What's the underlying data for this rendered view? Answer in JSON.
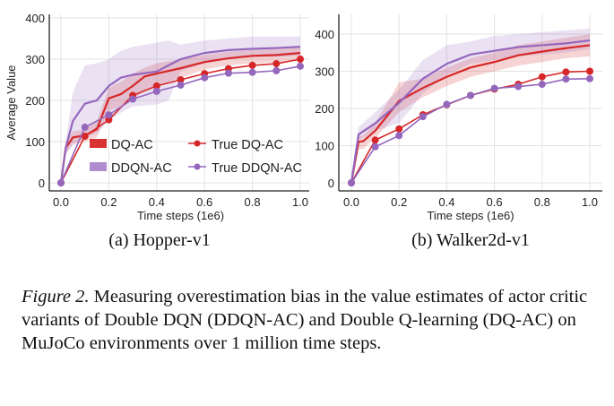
{
  "chart_data": [
    {
      "type": "line",
      "subtitle": "(a) Hopper-v1",
      "xlabel": "Time steps (1e6)",
      "ylabel": "Average Value",
      "xlim": [
        -0.05,
        1.03
      ],
      "ylim": [
        -60,
        410
      ],
      "xticks": [
        "0.0",
        "0.2",
        "0.4",
        "0.6",
        "0.8",
        "1.0"
      ],
      "yticks": [
        "0",
        "100",
        "200",
        "300",
        "400"
      ],
      "grid": true,
      "legend": "bottom-right",
      "series": [
        {
          "name": "DQ-AC",
          "style": "mean+band",
          "color": "#d62728",
          "x": [
            0,
            0.02,
            0.05,
            0.1,
            0.15,
            0.2,
            0.25,
            0.3,
            0.35,
            0.4,
            0.5,
            0.6,
            0.7,
            0.8,
            0.9,
            1.0
          ],
          "y": [
            0,
            85,
            110,
            115,
            130,
            205,
            215,
            235,
            258,
            265,
            278,
            293,
            302,
            308,
            310,
            315
          ],
          "lower": [
            0,
            70,
            95,
            100,
            110,
            175,
            185,
            200,
            225,
            235,
            255,
            275,
            285,
            290,
            292,
            298
          ],
          "upper": [
            0,
            100,
            125,
            130,
            150,
            230,
            245,
            265,
            280,
            290,
            300,
            310,
            318,
            322,
            325,
            330
          ]
        },
        {
          "name": "DDQN-AC",
          "style": "mean+band",
          "color": "#9467bd",
          "x": [
            0,
            0.02,
            0.05,
            0.1,
            0.15,
            0.2,
            0.25,
            0.3,
            0.4,
            0.45,
            0.5,
            0.6,
            0.7,
            0.8,
            0.9,
            1.0
          ],
          "y": [
            0,
            85,
            150,
            192,
            200,
            235,
            255,
            262,
            270,
            285,
            300,
            315,
            322,
            325,
            327,
            330
          ],
          "lower": [
            0,
            70,
            90,
            110,
            120,
            150,
            170,
            185,
            190,
            200,
            270,
            290,
            300,
            305,
            305,
            308
          ],
          "upper": [
            0,
            100,
            220,
            285,
            290,
            300,
            320,
            330,
            340,
            345,
            335,
            345,
            350,
            355,
            355,
            355
          ]
        },
        {
          "name": "True DQ-AC",
          "style": "line+markers",
          "color": "#d62728",
          "x": [
            0,
            0.1,
            0.2,
            0.3,
            0.4,
            0.5,
            0.6,
            0.7,
            0.8,
            0.9,
            1.0
          ],
          "y": [
            0,
            113,
            153,
            212,
            235,
            250,
            265,
            277,
            285,
            289,
            300
          ]
        },
        {
          "name": "True DDQN-AC",
          "style": "line+markers",
          "color": "#9467bd",
          "x": [
            0,
            0.1,
            0.2,
            0.3,
            0.4,
            0.5,
            0.6,
            0.7,
            0.8,
            0.9,
            1.0
          ],
          "y": [
            0,
            135,
            165,
            203,
            222,
            237,
            255,
            266,
            268,
            272,
            283
          ]
        }
      ]
    },
    {
      "type": "line",
      "subtitle": "(b) Walker2d-v1",
      "xlabel": "Time steps (1e6)",
      "ylabel": "",
      "xlim": [
        -0.05,
        1.03
      ],
      "ylim": [
        -20,
        450
      ],
      "xticks": [
        "0.0",
        "0.2",
        "0.4",
        "0.6",
        "0.8",
        "1.0"
      ],
      "yticks": [
        "0",
        "100",
        "200",
        "300",
        "400"
      ],
      "grid": true,
      "series": [
        {
          "name": "DQ-AC",
          "style": "mean+band",
          "color": "#d62728",
          "x": [
            0,
            0.03,
            0.05,
            0.1,
            0.2,
            0.3,
            0.4,
            0.5,
            0.6,
            0.7,
            0.8,
            0.9,
            1.0
          ],
          "y": [
            0,
            110,
            112,
            140,
            220,
            255,
            285,
            310,
            325,
            343,
            353,
            362,
            370
          ],
          "lower": [
            0,
            90,
            92,
            120,
            190,
            230,
            260,
            285,
            300,
            315,
            325,
            335,
            340
          ],
          "upper": [
            0,
            125,
            128,
            160,
            270,
            280,
            310,
            335,
            350,
            370,
            380,
            390,
            400
          ]
        },
        {
          "name": "DDQN-AC",
          "style": "mean+band",
          "color": "#9467bd",
          "x": [
            0,
            0.03,
            0.1,
            0.2,
            0.3,
            0.4,
            0.5,
            0.6,
            0.7,
            0.8,
            0.9,
            1.0
          ],
          "y": [
            0,
            130,
            160,
            215,
            280,
            320,
            345,
            355,
            365,
            370,
            375,
            383
          ],
          "lower": [
            0,
            115,
            140,
            160,
            240,
            290,
            320,
            330,
            340,
            345,
            350,
            360
          ],
          "upper": [
            0,
            150,
            190,
            250,
            330,
            370,
            380,
            395,
            400,
            405,
            410,
            415
          ]
        },
        {
          "name": "True DQ-AC",
          "style": "line+markers",
          "color": "#d62728",
          "x": [
            0,
            0.1,
            0.2,
            0.3,
            0.4,
            0.5,
            0.6,
            0.7,
            0.8,
            0.9,
            1.0
          ],
          "y": [
            0,
            115,
            145,
            183,
            210,
            235,
            252,
            265,
            285,
            298,
            300
          ]
        },
        {
          "name": "True DDQN-AC",
          "style": "line+markers",
          "color": "#9467bd",
          "x": [
            0,
            0.1,
            0.2,
            0.3,
            0.4,
            0.5,
            0.6,
            0.7,
            0.8,
            0.9,
            1.0
          ],
          "y": [
            0,
            97,
            127,
            178,
            211,
            235,
            254,
            259,
            265,
            279,
            280
          ]
        }
      ]
    }
  ],
  "caption": {
    "label": "Figure 2.",
    "text": " Measuring overestimation bias in the value estimates of actor critic variants of Double DQN (DDQN-AC) and Double Q-learning (DQ-AC) on MuJoCo environments over 1 million time steps."
  }
}
